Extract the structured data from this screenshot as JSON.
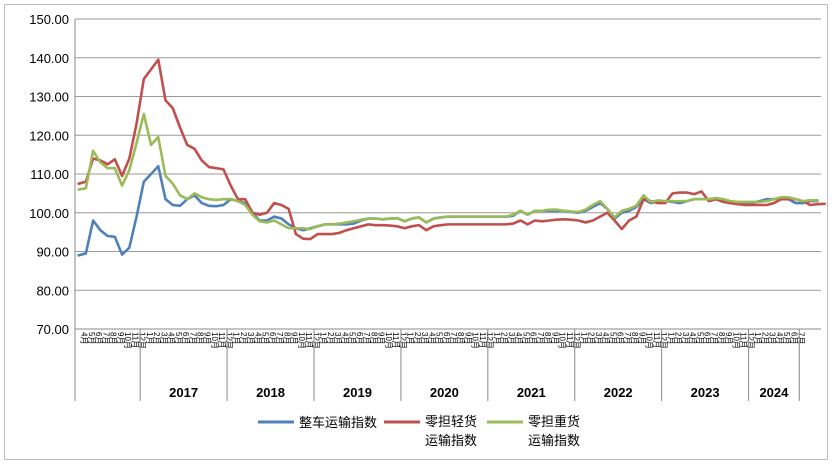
{
  "chart_data": {
    "type": "line",
    "title": "",
    "xlabel": "",
    "ylabel": "",
    "ylim": [
      70,
      150
    ],
    "yticks": [
      "70.00",
      "80.00",
      "90.00",
      "100.00",
      "110.00",
      "120.00",
      "130.00",
      "140.00",
      "150.00"
    ],
    "grid": "horizontal",
    "legend_position": "bottom",
    "start_partial_months": 9,
    "years": [
      {
        "label": "2017",
        "months": 12
      },
      {
        "label": "2018",
        "months": 12
      },
      {
        "label": "2019",
        "months": 12
      },
      {
        "label": "2020",
        "months": 12
      },
      {
        "label": "2021",
        "months": 12
      },
      {
        "label": "2022",
        "months": 12
      },
      {
        "label": "2023",
        "months": 12
      },
      {
        "label": "2024",
        "months": 7
      }
    ],
    "series": [
      {
        "name": "整车运输指数",
        "color": "#4F81BD",
        "values": [
          89.0,
          89.5,
          98.0,
          95.5,
          94.0,
          93.8,
          89.2,
          91.0,
          99.0,
          108.0,
          110.0,
          112.0,
          103.5,
          102.0,
          101.8,
          103.5,
          104.5,
          102.5,
          101.8,
          101.7,
          102.0,
          103.5,
          103.0,
          102.5,
          100.0,
          98.0,
          98.0,
          99.0,
          98.5,
          97.0,
          96.0,
          95.5,
          96.0,
          96.5,
          97.0,
          97.0,
          97.0,
          97.0,
          97.2,
          98.0,
          98.5,
          98.5,
          98.3,
          98.5,
          98.6,
          97.8,
          98.5,
          98.8,
          97.5,
          98.5,
          98.8,
          99.0,
          99.0,
          99.0,
          99.0,
          99.0,
          99.0,
          99.0,
          99.0,
          99.0,
          99.2,
          100.5,
          99.5,
          100.5,
          100.5,
          100.5,
          100.5,
          100.5,
          100.2,
          100.0,
          100.5,
          101.5,
          102.5,
          101.0,
          98.5,
          100.0,
          100.5,
          101.5,
          103.5,
          102.5,
          103.0,
          103.0,
          102.8,
          102.5,
          103.0,
          103.5,
          103.5,
          103.5,
          103.5,
          103.0,
          102.5,
          102.5,
          102.5,
          102.5,
          103.0,
          103.5,
          103.5,
          103.8,
          103.5,
          102.5,
          102.5,
          103.0,
          103.0
        ]
      },
      {
        "name": "零担轻货运输指数",
        "color": "#C0504D",
        "values": [
          107.5,
          108.0,
          114.0,
          113.5,
          112.5,
          113.8,
          109.5,
          114.0,
          123.0,
          134.5,
          137.0,
          139.5,
          129.0,
          127.0,
          122.0,
          117.5,
          116.5,
          113.5,
          111.8,
          111.5,
          111.2,
          107.0,
          103.5,
          103.5,
          100.0,
          99.5,
          100.0,
          102.5,
          102.0,
          101.0,
          94.5,
          93.3,
          93.2,
          94.5,
          94.5,
          94.5,
          94.8,
          95.5,
          96.0,
          96.5,
          97.0,
          96.8,
          96.8,
          96.7,
          96.5,
          96.0,
          96.5,
          96.8,
          95.5,
          96.5,
          96.8,
          97.0,
          97.0,
          97.0,
          97.0,
          97.0,
          97.0,
          97.0,
          97.0,
          97.0,
          97.2,
          98.0,
          97.0,
          98.0,
          97.8,
          98.0,
          98.2,
          98.3,
          98.2,
          98.0,
          97.5,
          98.0,
          99.0,
          100.0,
          98.0,
          95.8,
          98.0,
          99.0,
          103.5,
          103.0,
          102.5,
          102.5,
          105.0,
          105.2,
          105.2,
          104.8,
          105.5,
          103.0,
          103.5,
          102.8,
          102.5,
          102.2,
          102.0,
          102.0,
          102.0,
          102.0,
          102.5,
          103.5,
          103.5,
          103.5,
          103.0,
          102.0,
          102.2,
          102.3
        ]
      },
      {
        "name": "零担重货运输指数",
        "color": "#9BBB59",
        "values": [
          106.0,
          106.3,
          116.0,
          113.0,
          111.5,
          111.5,
          107.0,
          111.0,
          118.0,
          125.5,
          117.5,
          119.5,
          109.5,
          107.5,
          104.5,
          103.5,
          105.0,
          104.0,
          103.5,
          103.3,
          103.5,
          103.5,
          103.0,
          102.0,
          99.5,
          97.8,
          97.5,
          98.0,
          97.0,
          96.0,
          96.0,
          96.0,
          95.8,
          96.5,
          97.0,
          97.0,
          97.2,
          97.5,
          97.8,
          98.2,
          98.5,
          98.5,
          98.3,
          98.5,
          98.6,
          97.8,
          98.5,
          98.8,
          97.5,
          98.5,
          98.8,
          99.0,
          99.0,
          99.0,
          99.0,
          99.0,
          99.0,
          99.0,
          99.0,
          99.0,
          99.5,
          100.5,
          99.5,
          100.5,
          100.5,
          100.8,
          100.8,
          100.5,
          100.3,
          100.2,
          100.8,
          102.0,
          103.0,
          101.0,
          98.8,
          100.5,
          101.0,
          101.8,
          104.5,
          102.8,
          103.2,
          103.0,
          103.0,
          103.0,
          103.0,
          103.5,
          103.5,
          103.5,
          103.8,
          103.5,
          103.0,
          102.8,
          102.8,
          102.8,
          102.8,
          103.0,
          103.5,
          104.0,
          104.0,
          103.5,
          103.0,
          103.2,
          103.2
        ]
      }
    ]
  },
  "legend": {
    "items": [
      {
        "line1": "整车运输指数",
        "line2": "",
        "color": "#4F81BD"
      },
      {
        "line1": "零担轻货",
        "line2": "运输指数",
        "color": "#C0504D"
      },
      {
        "line1": "零担重货",
        "line2": "运输指数",
        "color": "#9BBB59"
      }
    ]
  }
}
